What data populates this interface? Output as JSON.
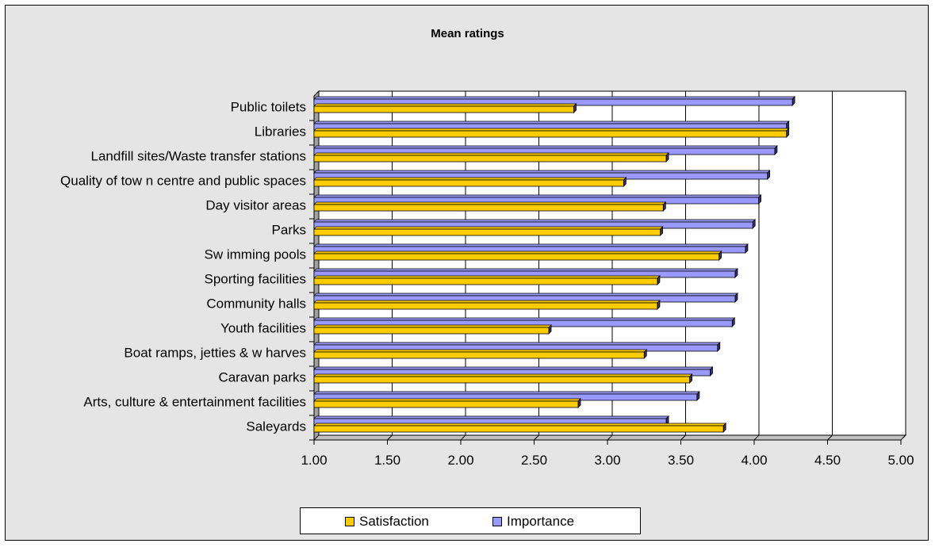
{
  "chart_data": {
    "type": "bar",
    "orientation": "horizontal",
    "title": "Mean ratings",
    "categories": [
      "Public toilets",
      "Libraries",
      "Landfill sites/Waste transfer stations",
      "Quality of tow n centre and public spaces",
      "Day visitor areas",
      "Parks",
      "Sw imming pools",
      "Sporting facilities",
      "Community halls",
      "Youth facilities",
      "Boat ramps, jetties & w harves",
      "Caravan parks",
      "Arts, culture & entertainment facilities",
      "Saleyards"
    ],
    "series": [
      {
        "name": "Importance",
        "color": "#9999ff",
        "values": [
          4.26,
          4.22,
          4.14,
          4.09,
          4.03,
          3.99,
          3.94,
          3.87,
          3.87,
          3.85,
          3.75,
          3.7,
          3.61,
          3.4
        ]
      },
      {
        "name": "Satisfaction",
        "color": "#ffcc00",
        "values": [
          2.77,
          4.22,
          3.4,
          3.11,
          3.38,
          3.36,
          3.76,
          3.34,
          3.34,
          2.6,
          3.25,
          3.56,
          2.8,
          3.79
        ]
      }
    ],
    "xlim": [
      1.0,
      5.0
    ],
    "xticks": [
      "1.00",
      "1.50",
      "2.00",
      "2.50",
      "3.00",
      "3.50",
      "4.00",
      "4.50",
      "5.00"
    ],
    "grid": true,
    "legend_position": "bottom"
  },
  "legend": {
    "satisfaction_label": "Satisfaction",
    "importance_label": "Importance"
  }
}
